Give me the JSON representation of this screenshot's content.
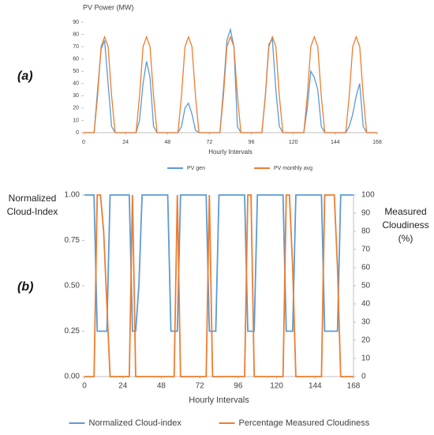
{
  "chart_data": [
    {
      "type": "line",
      "panel_label": "(a)",
      "title": "PV Power (MW)",
      "x_label": "Hourly Intervals",
      "x": [
        0,
        2,
        4,
        6,
        8,
        10,
        12,
        14,
        16,
        18,
        20,
        22,
        24,
        26,
        28,
        30,
        32,
        34,
        36,
        38,
        40,
        42,
        44,
        46,
        48,
        50,
        52,
        54,
        56,
        58,
        60,
        62,
        64,
        66,
        68,
        70,
        72,
        74,
        76,
        78,
        80,
        82,
        84,
        86,
        88,
        90,
        92,
        94,
        96,
        98,
        100,
        102,
        104,
        106,
        108,
        110,
        112,
        114,
        116,
        118,
        120,
        122,
        124,
        126,
        128,
        130,
        132,
        134,
        136,
        138,
        140,
        142,
        144,
        146,
        148,
        150,
        152,
        154,
        156,
        158,
        160,
        162,
        164,
        166,
        168
      ],
      "xlim": [
        0,
        168
      ],
      "xticks": [
        0,
        24,
        48,
        72,
        96,
        120,
        144,
        168
      ],
      "ylim": [
        0,
        90
      ],
      "yticks": [
        0,
        10,
        20,
        30,
        40,
        50,
        60,
        70,
        80,
        90
      ],
      "series": [
        {
          "name": "PV gen",
          "color": "#5b9bd5",
          "values": [
            0,
            0,
            0,
            0,
            35,
            68,
            75,
            40,
            5,
            0,
            0,
            0,
            0,
            0,
            0,
            0,
            10,
            40,
            58,
            45,
            5,
            0,
            0,
            0,
            0,
            0,
            0,
            0,
            5,
            20,
            24,
            15,
            2,
            0,
            0,
            0,
            0,
            0,
            0,
            0,
            35,
            75,
            84,
            70,
            5,
            0,
            0,
            0,
            0,
            0,
            0,
            0,
            30,
            72,
            76,
            35,
            5,
            0,
            0,
            0,
            0,
            0,
            0,
            0,
            20,
            50,
            45,
            35,
            5,
            0,
            0,
            0,
            0,
            0,
            0,
            0,
            5,
            15,
            30,
            40,
            5,
            0,
            0,
            0,
            0
          ]
        },
        {
          "name": "PV monthly avg",
          "color": "#ed7d31",
          "values": [
            0,
            0,
            0,
            0,
            30,
            70,
            78,
            70,
            30,
            0,
            0,
            0,
            0,
            0,
            0,
            0,
            30,
            70,
            78,
            70,
            30,
            0,
            0,
            0,
            0,
            0,
            0,
            0,
            30,
            70,
            78,
            70,
            30,
            0,
            0,
            0,
            0,
            0,
            0,
            0,
            30,
            70,
            78,
            70,
            30,
            0,
            0,
            0,
            0,
            0,
            0,
            0,
            30,
            70,
            78,
            70,
            30,
            0,
            0,
            0,
            0,
            0,
            0,
            0,
            30,
            70,
            78,
            70,
            30,
            0,
            0,
            0,
            0,
            0,
            0,
            0,
            30,
            70,
            78,
            70,
            30,
            0,
            0,
            0,
            0
          ]
        }
      ]
    },
    {
      "type": "line",
      "panel_label": "(b)",
      "x_label": "Hourly Intervals",
      "y_label": "Normalized Cloud-Index",
      "y2_label": "Measured Cloudiness (%)",
      "x": [
        0,
        2,
        4,
        6,
        8,
        10,
        12,
        14,
        16,
        18,
        20,
        22,
        24,
        26,
        28,
        30,
        32,
        34,
        36,
        38,
        40,
        42,
        44,
        46,
        48,
        50,
        52,
        54,
        56,
        58,
        60,
        62,
        64,
        66,
        68,
        70,
        72,
        74,
        76,
        78,
        80,
        82,
        84,
        86,
        88,
        90,
        92,
        94,
        96,
        98,
        100,
        102,
        104,
        106,
        108,
        110,
        112,
        114,
        116,
        118,
        120,
        122,
        124,
        126,
        128,
        130,
        132,
        134,
        136,
        138,
        140,
        142,
        144,
        146,
        148,
        150,
        152,
        154,
        156,
        158,
        160,
        162,
        164,
        166,
        168
      ],
      "xlim": [
        0,
        168
      ],
      "xticks": [
        0,
        24,
        48,
        72,
        96,
        120,
        144,
        168
      ],
      "ylim": [
        0,
        1
      ],
      "yticks": [
        {
          "value": 0,
          "label": "0.00"
        },
        {
          "value": 0.25,
          "label": "0.25"
        },
        {
          "value": 0.5,
          "label": "0.50"
        },
        {
          "value": 0.75,
          "label": "0.75"
        },
        {
          "value": 1,
          "label": "1.00"
        }
      ],
      "y2lim": [
        0,
        100
      ],
      "y2ticks": [
        0,
        10,
        20,
        30,
        40,
        50,
        60,
        70,
        80,
        90,
        100
      ],
      "series": [
        {
          "name": "Normalized Cloud-index",
          "color": "#5b9bd5",
          "values": [
            1,
            1,
            1,
            1,
            0.25,
            0.25,
            0.25,
            0.25,
            1,
            1,
            1,
            1,
            1,
            1,
            1,
            0.25,
            0.25,
            0.5,
            1,
            1,
            1,
            1,
            1,
            1,
            1,
            1,
            1,
            0.25,
            0.25,
            0.25,
            1,
            1,
            1,
            1,
            1,
            1,
            1,
            1,
            1,
            0.25,
            0.25,
            0.25,
            1,
            1,
            1,
            1,
            1,
            1,
            1,
            1,
            1,
            0.25,
            0.25,
            0.25,
            1,
            1,
            1,
            1,
            1,
            1,
            1,
            1,
            1,
            0.25,
            0.25,
            0.25,
            1,
            1,
            1,
            1,
            1,
            1,
            1,
            1,
            1,
            0.25,
            0.25,
            0.25,
            0.25,
            0.25,
            1,
            1,
            1,
            1,
            1
          ]
        },
        {
          "name": "Percentage Measured Cloudiness",
          "color": "#ed7d31",
          "axis": "y2",
          "values": [
            0,
            0,
            0,
            0,
            100,
            100,
            80,
            40,
            0,
            0,
            0,
            0,
            0,
            0,
            0,
            100,
            0,
            0,
            0,
            0,
            0,
            0,
            0,
            0,
            0,
            0,
            0,
            0,
            0,
            100,
            0,
            0,
            0,
            0,
            0,
            0,
            0,
            0,
            0,
            100,
            0,
            0,
            0,
            0,
            0,
            0,
            0,
            0,
            0,
            0,
            0,
            100,
            100,
            0,
            0,
            0,
            0,
            0,
            0,
            0,
            0,
            0,
            0,
            100,
            100,
            60,
            0,
            0,
            0,
            0,
            0,
            0,
            0,
            0,
            0,
            100,
            100,
            100,
            100,
            60,
            0,
            0,
            0,
            0,
            0
          ]
        }
      ]
    }
  ]
}
